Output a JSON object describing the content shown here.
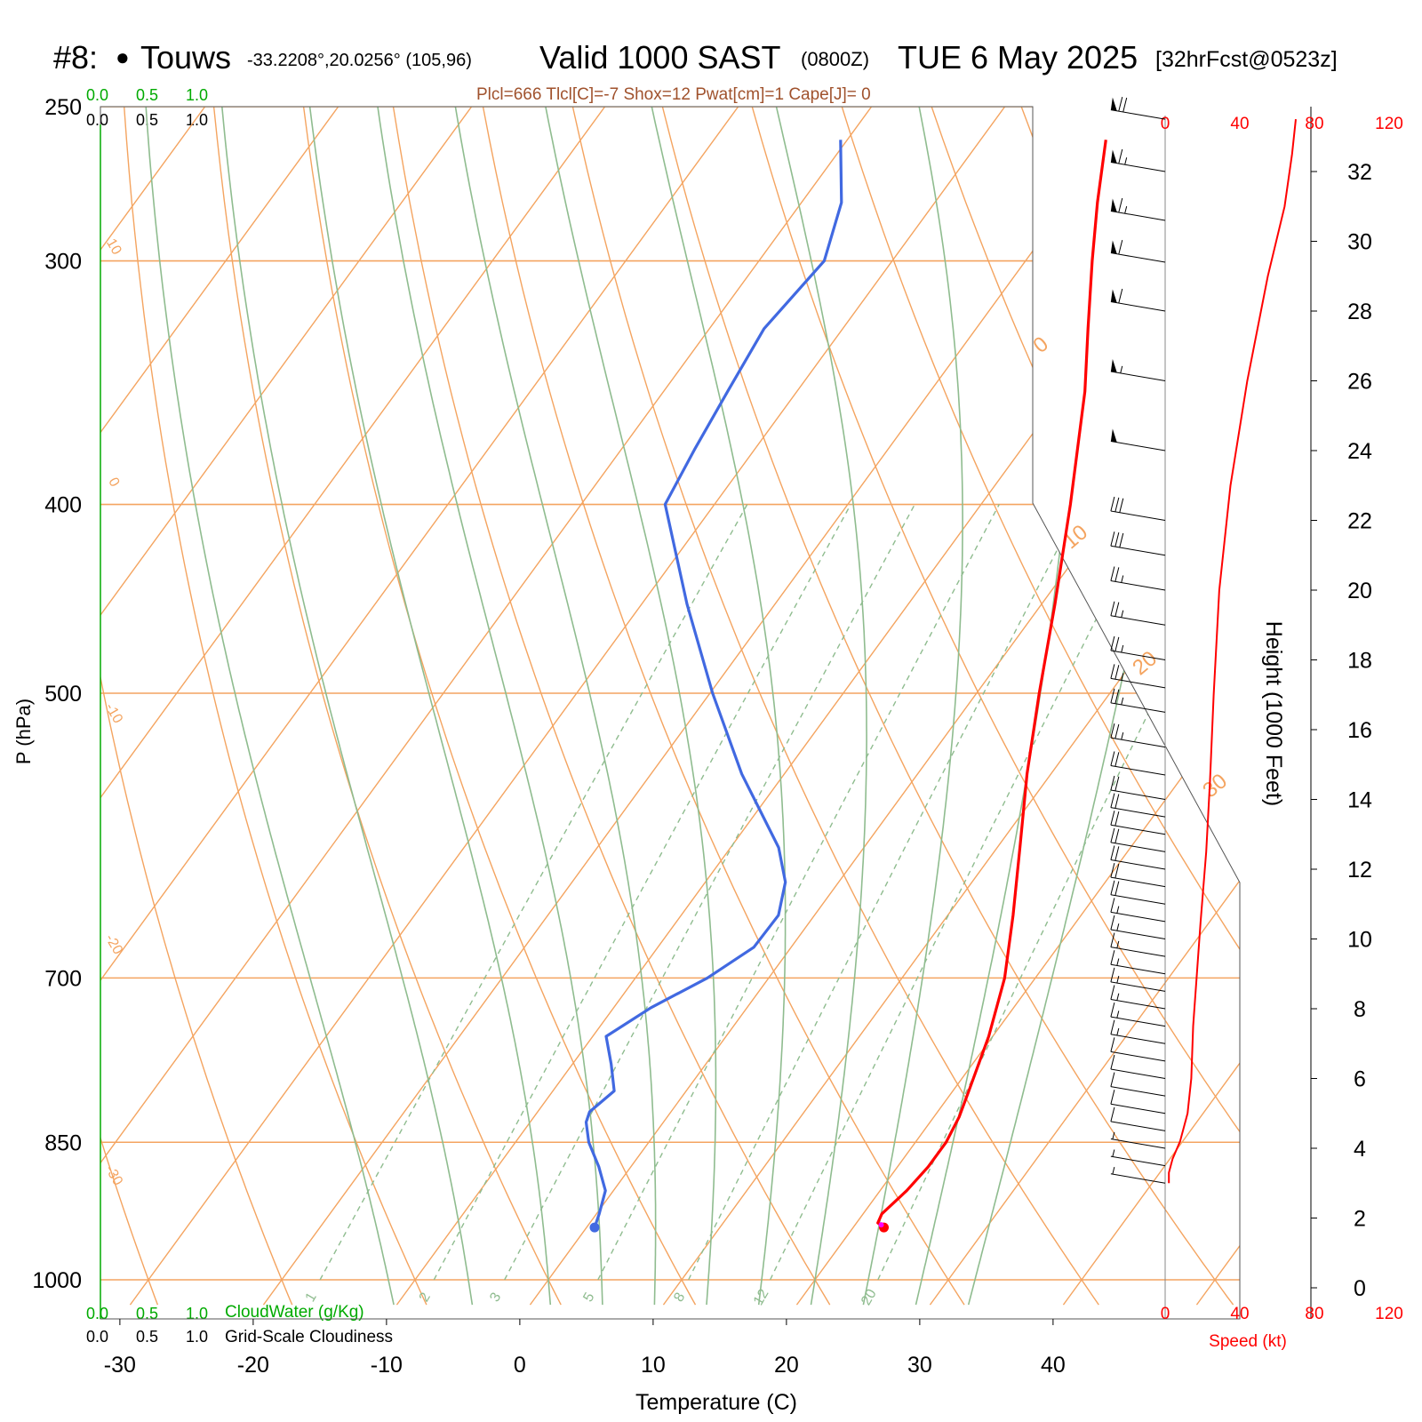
{
  "header": {
    "station_prefix": "#8:",
    "station_dot": "●",
    "station_name": "Touws",
    "coords": "-33.2208°,20.0256° (105,96)",
    "valid": "Valid 1000 SAST",
    "zulu": "(0800Z)",
    "date": "TUE 6 May 2025",
    "forecast": "[32hrFcst@0523z]",
    "indices": "Plcl=666 Tlcl[C]=-7 Shox=12 Pwat[cm]=1 Cape[J]= 0"
  },
  "colors": {
    "temperature": "#ff0000",
    "dewpoint": "#4169e1",
    "isotherm_isobar": "#f4a460",
    "moist_adiabat": "#8fbc8f",
    "mixing_ratio": "#8fbc8f",
    "cloud_water": "#00aa00",
    "speed": "#ff0000",
    "parcel_dot": "#ff00ff"
  },
  "cloud_scales": {
    "top_green": [
      "0.0",
      "0.5",
      "1.0"
    ],
    "top_black": [
      "0.0",
      "0.5",
      "1.0"
    ],
    "bottom_green": [
      "0.0",
      "0.5",
      "1.0"
    ],
    "bottom_black": [
      "0.0",
      "0.5",
      "1.0"
    ],
    "cloudwater_label": "CloudWater (g/Kg)",
    "cloudiness_label": "Grid-Scale Cloudiness"
  },
  "axes": {
    "x_label": "Temperature (C)",
    "y_label": "P (hPa)",
    "height_label": "Height (1000 Feet)",
    "speed_label": "Speed (kt)"
  },
  "chart_data": {
    "type": "skew-t",
    "temperature_ticks": [
      -30,
      -20,
      -10,
      0,
      10,
      20,
      30,
      40
    ],
    "pressure_ticks": [
      250,
      300,
      400,
      500,
      700,
      850,
      1000
    ],
    "pressure_range_hPa": [
      250,
      1030
    ],
    "height_ticks_kft": [
      0,
      2,
      4,
      6,
      8,
      10,
      12,
      14,
      16,
      18,
      20,
      22,
      24,
      26,
      28,
      30,
      32
    ],
    "speed_ticks_kt": [
      0,
      40,
      80,
      120
    ],
    "isotherm_labels_upper": [
      "10",
      "0",
      "-10",
      "-20",
      "-30"
    ],
    "isotherm_labels_right": [
      "0",
      "10",
      "20",
      "30"
    ],
    "mixing_ratio_labels": [
      "1",
      "2",
      "3",
      "5",
      "8",
      "12",
      "20"
    ],
    "temperature_profile": [
      {
        "p": 940,
        "t": 22.3
      },
      {
        "p": 935,
        "t": 21.6
      },
      {
        "p": 925,
        "t": 21.4
      },
      {
        "p": 900,
        "t": 22.0
      },
      {
        "p": 875,
        "t": 22.3
      },
      {
        "p": 850,
        "t": 22.3
      },
      {
        "p": 825,
        "t": 21.9
      },
      {
        "p": 800,
        "t": 21.2
      },
      {
        "p": 750,
        "t": 19.7
      },
      {
        "p": 700,
        "t": 17.7
      },
      {
        "p": 650,
        "t": 14.9
      },
      {
        "p": 600,
        "t": 11.7
      },
      {
        "p": 550,
        "t": 8.2
      },
      {
        "p": 500,
        "t": 4.7
      },
      {
        "p": 450,
        "t": 1.0
      },
      {
        "p": 400,
        "t": -3.3
      },
      {
        "p": 350,
        "t": -8.4
      },
      {
        "p": 325,
        "t": -11.6
      },
      {
        "p": 300,
        "t": -15.0
      },
      {
        "p": 280,
        "t": -17.8
      },
      {
        "p": 260,
        "t": -20.6
      }
    ],
    "dewpoint_profile": [
      {
        "p": 940,
        "t": 0.6
      },
      {
        "p": 925,
        "t": 0.2
      },
      {
        "p": 900,
        "t": -0.6
      },
      {
        "p": 875,
        "t": -2.4
      },
      {
        "p": 850,
        "t": -4.5
      },
      {
        "p": 830,
        "t": -5.8
      },
      {
        "p": 820,
        "t": -6.1
      },
      {
        "p": 800,
        "t": -5.4
      },
      {
        "p": 775,
        "t": -7.1
      },
      {
        "p": 750,
        "t": -9.0
      },
      {
        "p": 725,
        "t": -7.2
      },
      {
        "p": 700,
        "t": -4.6
      },
      {
        "p": 675,
        "t": -2.8
      },
      {
        "p": 650,
        "t": -2.7
      },
      {
        "p": 625,
        "t": -4.0
      },
      {
        "p": 600,
        "t": -6.4
      },
      {
        "p": 550,
        "t": -13.2
      },
      {
        "p": 500,
        "t": -19.8
      },
      {
        "p": 450,
        "t": -26.6
      },
      {
        "p": 400,
        "t": -33.7
      },
      {
        "p": 375,
        "t": -34.5
      },
      {
        "p": 350,
        "t": -35.2
      },
      {
        "p": 325,
        "t": -35.9
      },
      {
        "p": 300,
        "t": -35.1
      },
      {
        "p": 280,
        "t": -37.0
      },
      {
        "p": 260,
        "t": -40.5
      }
    ],
    "speed_profile_kt": [
      {
        "h": 3.0,
        "s": 2
      },
      {
        "h": 3.3,
        "s": 2
      },
      {
        "h": 3.7,
        "s": 4
      },
      {
        "h": 4.2,
        "s": 8
      },
      {
        "h": 5.0,
        "s": 12
      },
      {
        "h": 6.0,
        "s": 14
      },
      {
        "h": 7.5,
        "s": 15
      },
      {
        "h": 9.0,
        "s": 17
      },
      {
        "h": 10.5,
        "s": 19
      },
      {
        "h": 12.5,
        "s": 22
      },
      {
        "h": 14.5,
        "s": 24
      },
      {
        "h": 17.0,
        "s": 26
      },
      {
        "h": 20.0,
        "s": 29
      },
      {
        "h": 23.0,
        "s": 35
      },
      {
        "h": 26.0,
        "s": 44
      },
      {
        "h": 29.0,
        "s": 55
      },
      {
        "h": 31.0,
        "s": 64
      },
      {
        "h": 32.5,
        "s": 68
      },
      {
        "h": 33.5,
        "s": 70
      }
    ],
    "wind_barbs_kt": [
      {
        "h": 3.0,
        "s": 5
      },
      {
        "h": 3.5,
        "s": 6
      },
      {
        "h": 4.0,
        "s": 8
      },
      {
        "h": 4.5,
        "s": 10
      },
      {
        "h": 5.0,
        "s": 12
      },
      {
        "h": 5.5,
        "s": 13
      },
      {
        "h": 6.0,
        "s": 14
      },
      {
        "h": 6.5,
        "s": 14
      },
      {
        "h": 7.0,
        "s": 15
      },
      {
        "h": 7.5,
        "s": 15
      },
      {
        "h": 8.0,
        "s": 16
      },
      {
        "h": 8.5,
        "s": 16
      },
      {
        "h": 9.0,
        "s": 17
      },
      {
        "h": 9.5,
        "s": 18
      },
      {
        "h": 10.0,
        "s": 18
      },
      {
        "h": 10.5,
        "s": 19
      },
      {
        "h": 11.0,
        "s": 20
      },
      {
        "h": 11.5,
        "s": 20
      },
      {
        "h": 12.0,
        "s": 21
      },
      {
        "h": 12.5,
        "s": 22
      },
      {
        "h": 13.0,
        "s": 22
      },
      {
        "h": 13.5,
        "s": 23
      },
      {
        "h": 14.0,
        "s": 24
      },
      {
        "h": 14.7,
        "s": 24
      },
      {
        "h": 15.5,
        "s": 25
      },
      {
        "h": 16.5,
        "s": 25
      },
      {
        "h": 17.2,
        "s": 26
      },
      {
        "h": 18.0,
        "s": 27
      },
      {
        "h": 19.0,
        "s": 28
      },
      {
        "h": 20.0,
        "s": 29
      },
      {
        "h": 21.0,
        "s": 31
      },
      {
        "h": 22.0,
        "s": 33
      },
      {
        "h": 24.0,
        "s": 52
      },
      {
        "h": 26.0,
        "s": 56
      },
      {
        "h": 28.0,
        "s": 60
      },
      {
        "h": 29.4,
        "s": 64
      },
      {
        "h": 30.6,
        "s": 66
      },
      {
        "h": 32.0,
        "s": 68
      },
      {
        "h": 33.5,
        "s": 70
      }
    ]
  }
}
